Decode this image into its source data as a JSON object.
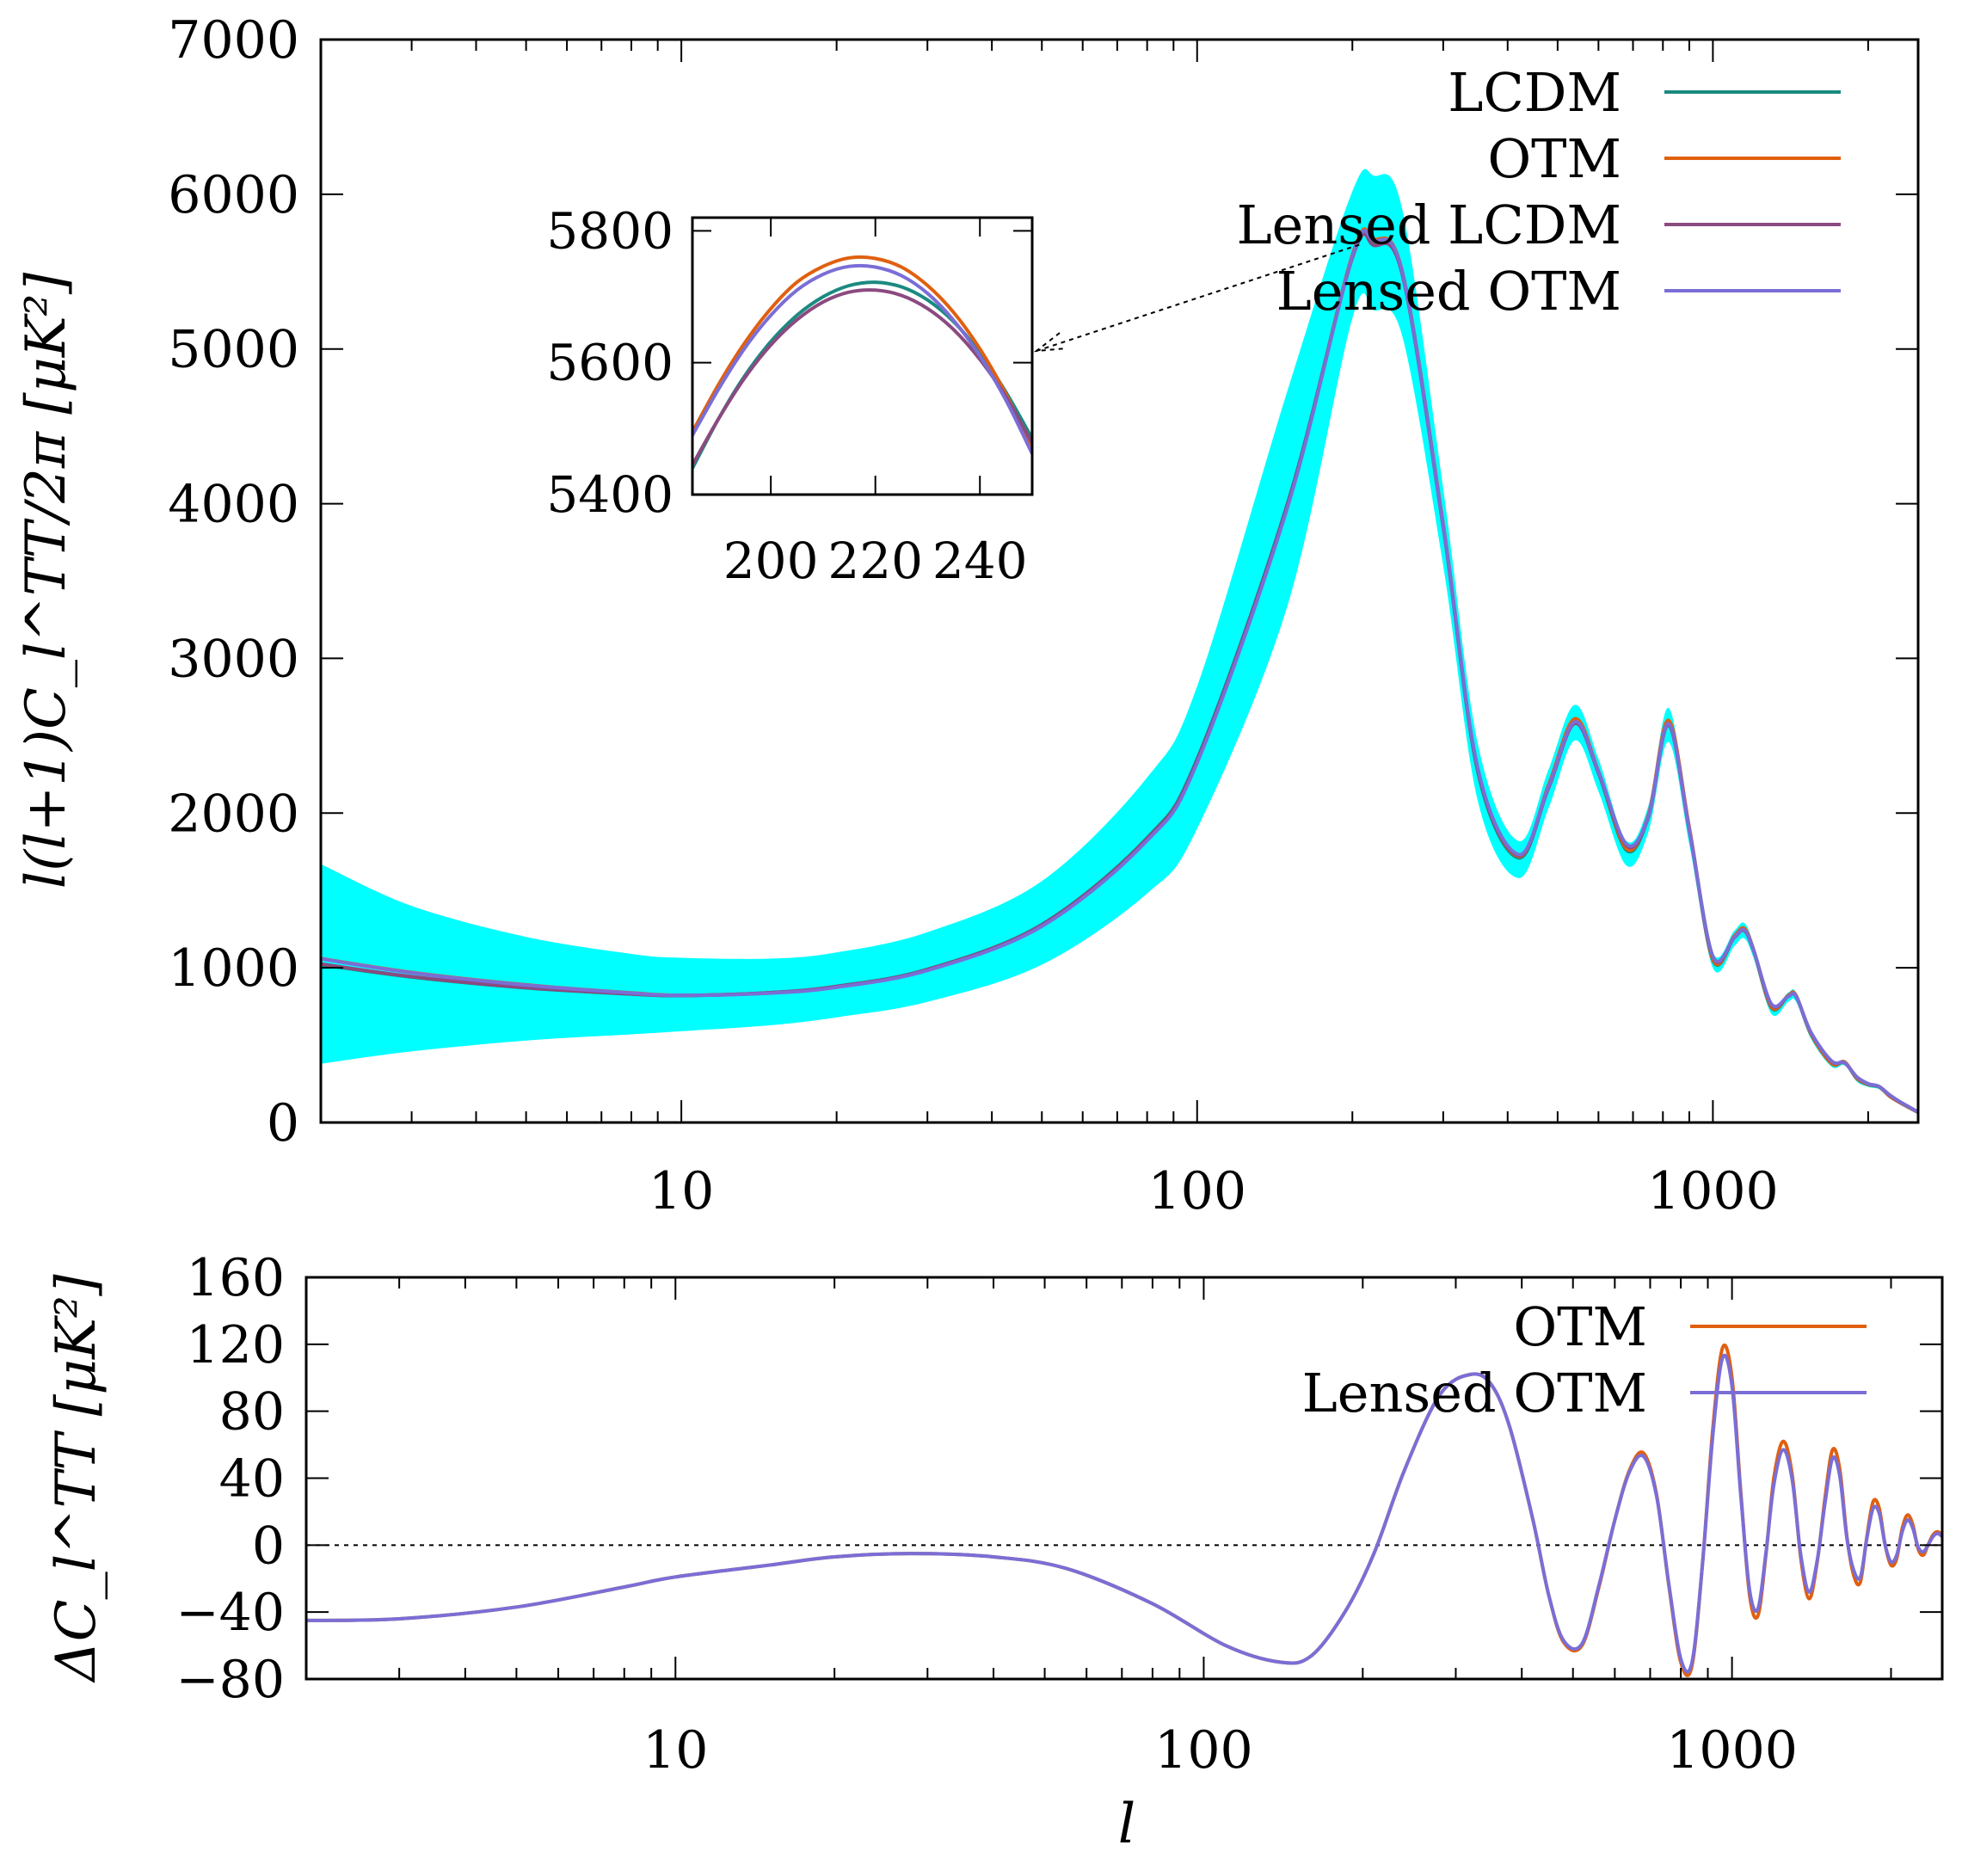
{
  "chart_data": [
    {
      "type": "line",
      "ylabel": "l(l+1)C_l^TT/2π [μK²]",
      "xlim": [
        2,
        2500
      ],
      "ylim": [
        0,
        7000
      ],
      "x_scale": "log",
      "x_ticks": [
        "10",
        "100",
        "1000"
      ],
      "y_ticks": [
        "0",
        "1000",
        "2000",
        "3000",
        "4000",
        "5000",
        "6000",
        "7000"
      ],
      "legend_position": "top-right",
      "band": {
        "color": "#00ffff",
        "x": [
          2,
          3,
          5,
          8,
          10,
          15,
          20,
          30,
          50,
          80,
          100,
          150,
          200,
          220,
          250,
          300,
          350,
          420,
          480,
          540,
          600,
          680,
          750,
          820,
          900,
          1000,
          1100,
          1150,
          1200,
          1300,
          1400,
          1450,
          1550,
          1700,
          1800,
          1900,
          2000,
          2100,
          2200,
          2300,
          2500
        ],
        "upper": [
          1670,
          1400,
          1200,
          1090,
          1065,
          1060,
          1100,
          1230,
          1560,
          2230,
          2820,
          4740,
          6020,
          6120,
          5900,
          4100,
          2450,
          1820,
          2280,
          2700,
          2350,
          1820,
          2050,
          2680,
          1950,
          1100,
          1240,
          1290,
          1150,
          760,
          840,
          840,
          590,
          390,
          400,
          290,
          250,
          235,
          175,
          135,
          70
        ],
        "lower": [
          380,
          460,
          530,
          570,
          590,
          630,
          680,
          780,
          1020,
          1480,
          1900,
          3350,
          5200,
          5250,
          5080,
          3600,
          2080,
          1580,
          2030,
          2470,
          2140,
          1660,
          1880,
          2460,
          1800,
          1000,
          1140,
          1190,
          1060,
          700,
          780,
          780,
          540,
          360,
          370,
          265,
          230,
          215,
          160,
          120,
          60
        ]
      },
      "x": [
        2,
        3,
        5,
        8,
        10,
        15,
        20,
        30,
        50,
        80,
        100,
        150,
        200,
        220,
        250,
        300,
        350,
        420,
        480,
        540,
        600,
        680,
        750,
        820,
        900,
        1000,
        1100,
        1150,
        1200,
        1300,
        1400,
        1450,
        1550,
        1700,
        1800,
        1900,
        2000,
        2100,
        2200,
        2300,
        2500
      ],
      "series": [
        {
          "name": "LCDM",
          "color": "#1b8a80",
          "values": [
            1020,
            940,
            870,
            830,
            820,
            840,
            880,
            990,
            1280,
            1840,
            2350,
            4010,
            5600,
            5680,
            5490,
            3860,
            2270,
            1710,
            2170,
            2600,
            2260,
            1760,
            1980,
            2590,
            1900,
            1050,
            1200,
            1250,
            1110,
            740,
            820,
            820,
            570,
            380,
            390,
            285,
            245,
            230,
            170,
            130,
            65
          ]
        },
        {
          "name": "OTM",
          "color": "#e06010",
          "values": [
            1060,
            970,
            890,
            838,
            822,
            838,
            875,
            985,
            1270,
            1825,
            2330,
            3990,
            5610,
            5710,
            5500,
            3870,
            2285,
            1720,
            2180,
            2610,
            2270,
            1770,
            1990,
            2600,
            1910,
            1055,
            1205,
            1255,
            1115,
            745,
            822,
            822,
            572,
            382,
            392,
            287,
            247,
            232,
            172,
            131,
            66
          ]
        },
        {
          "name": "Lensed LCDM",
          "color": "#8b4a80",
          "values": [
            1025,
            943,
            872,
            831,
            821,
            840,
            879,
            988,
            1277,
            1835,
            2340,
            4000,
            5590,
            5670,
            5480,
            3850,
            2280,
            1725,
            2160,
            2580,
            2260,
            1790,
            1975,
            2570,
            1890,
            1070,
            1195,
            1240,
            1110,
            760,
            815,
            815,
            580,
            395,
            385,
            295,
            250,
            232,
            178,
            135,
            68
          ]
        },
        {
          "name": "Lensed OTM",
          "color": "#7a6ed6",
          "values": [
            1058,
            968,
            888,
            837,
            821,
            837,
            874,
            983,
            1268,
            1822,
            2325,
            3985,
            5600,
            5700,
            5495,
            3860,
            2292,
            1732,
            2170,
            2590,
            2268,
            1798,
            1982,
            2578,
            1897,
            1074,
            1198,
            1244,
            1113,
            764,
            817,
            817,
            582,
            397,
            387,
            296,
            251,
            233,
            179,
            136,
            68
          ]
        }
      ],
      "legend": [
        "LCDM",
        "OTM",
        "Lensed LCDM",
        "Lensed OTM"
      ],
      "inset": {
        "xlim": [
          185,
          250
        ],
        "ylim": [
          5400,
          5820
        ],
        "x_ticks": [
          "200",
          "220",
          "240"
        ],
        "y_ticks": [
          "5400",
          "5600",
          "5800"
        ],
        "x": [
          185,
          190,
          195,
          200,
          205,
          210,
          215,
          220,
          225,
          230,
          235,
          240,
          245,
          250
        ],
        "series": [
          {
            "name": "LCDM",
            "values": [
              5440,
              5515,
              5580,
              5632,
              5672,
              5700,
              5717,
              5722,
              5715,
              5695,
              5662,
              5615,
              5555,
              5485
            ]
          },
          {
            "name": "OTM",
            "values": [
              5495,
              5567,
              5630,
              5682,
              5722,
              5746,
              5759,
              5758,
              5745,
              5717,
              5676,
              5621,
              5552,
              5470
            ]
          },
          {
            "name": "Lensed LCDM",
            "values": [
              5445,
              5515,
              5577,
              5627,
              5665,
              5692,
              5707,
              5710,
              5702,
              5682,
              5650,
              5605,
              5548,
              5478
            ]
          },
          {
            "name": "Lensed OTM",
            "values": [
              5490,
              5560,
              5622,
              5672,
              5710,
              5734,
              5746,
              5745,
              5732,
              5705,
              5664,
              5610,
              5543,
              5462
            ]
          }
        ]
      }
    },
    {
      "type": "line",
      "xlabel": "l",
      "ylabel": "ΔC_l^TT [μK²]",
      "xlim": [
        2,
        2500
      ],
      "ylim": [
        -80,
        160
      ],
      "x_scale": "log",
      "x_ticks": [
        "10",
        "100",
        "1000"
      ],
      "y_ticks": [
        "−80",
        "−40",
        "0",
        "40",
        "80",
        "120",
        "160"
      ],
      "zero_line": true,
      "legend_position": "top-right",
      "x": [
        2,
        3,
        5,
        8,
        10,
        15,
        20,
        28,
        40,
        55,
        80,
        110,
        140,
        160,
        185,
        210,
        240,
        280,
        320,
        350,
        380,
        420,
        450,
        480,
        520,
        560,
        600,
        640,
        680,
        720,
        760,
        800,
        840,
        880,
        920,
        960,
        1000,
        1040,
        1080,
        1120,
        1160,
        1200,
        1250,
        1300,
        1350,
        1400,
        1450,
        1500,
        1550,
        1600,
        1650,
        1700,
        1750,
        1800,
        1850,
        1900,
        1950,
        2000,
        2050,
        2100,
        2150,
        2200,
        2250,
        2300,
        2350,
        2400,
        2450,
        2500
      ],
      "series": [
        {
          "name": "OTM",
          "color": "#e06010",
          "values": [
            -45,
            -44,
            -37,
            -25,
            -19,
            -12,
            -7,
            -5,
            -7,
            -14,
            -35,
            -60,
            -70,
            -66,
            -40,
            -5,
            45,
            90,
            102,
            96,
            70,
            15,
            -30,
            -58,
            -60,
            -25,
            15,
            45,
            55,
            30,
            -25,
            -70,
            -72,
            -10,
            70,
            118,
            100,
            30,
            -30,
            -42,
            -5,
            40,
            62,
            42,
            -8,
            -32,
            -10,
            28,
            57,
            45,
            5,
            -18,
            -22,
            5,
            26,
            22,
            0,
            -12,
            -8,
            10,
            18,
            12,
            -2,
            -6,
            0,
            6,
            8,
            6
          ]
        },
        {
          "name": "Lensed OTM",
          "color": "#7a6ed6",
          "values": [
            -45,
            -44,
            -37,
            -25,
            -19,
            -12,
            -7,
            -5,
            -7,
            -14,
            -35,
            -60,
            -70,
            -66,
            -40,
            -5,
            45,
            90,
            102,
            96,
            70,
            15,
            -30,
            -57,
            -59,
            -24,
            15,
            44,
            53,
            29,
            -24,
            -68,
            -70,
            -10,
            66,
            112,
            95,
            28,
            -27,
            -38,
            -4,
            36,
            57,
            39,
            -6,
            -28,
            -9,
            25,
            52,
            41,
            4,
            -15,
            -19,
            4,
            22,
            19,
            0,
            -10,
            -6,
            8,
            15,
            10,
            -1,
            -4,
            0,
            5,
            7,
            5
          ]
        }
      ],
      "legend": [
        "OTM",
        "Lensed OTM"
      ]
    }
  ]
}
